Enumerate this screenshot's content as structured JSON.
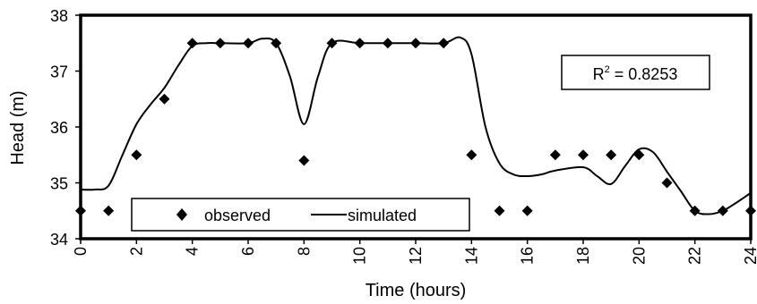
{
  "chart_data": {
    "type": "line",
    "title": "",
    "xlabel": "Time (hours)",
    "ylabel": "Head (m)",
    "xlim": [
      0,
      24
    ],
    "ylim": [
      34,
      38
    ],
    "grid": false,
    "legend_position": "bottom-left",
    "x_ticks": [
      "0",
      "2",
      "4",
      "6",
      "8",
      "10",
      "12",
      "14",
      "16",
      "18",
      "20",
      "22",
      "24"
    ],
    "y_ticks": [
      "34",
      "35",
      "36",
      "37",
      "38"
    ],
    "annotation": {
      "r_label": "R",
      "r_exponent": "2",
      "r_value": " = 0.8253"
    },
    "series": [
      {
        "name": "observed",
        "style": "markers",
        "marker": "diamond",
        "color": "#000000",
        "points": [
          [
            0,
            34.5
          ],
          [
            1,
            34.5
          ],
          [
            2,
            35.5
          ],
          [
            3,
            36.5
          ],
          [
            4,
            37.5
          ],
          [
            5,
            37.5
          ],
          [
            6,
            37.5
          ],
          [
            7,
            37.5
          ],
          [
            8,
            35.4
          ],
          [
            9,
            37.5
          ],
          [
            10,
            37.5
          ],
          [
            11,
            37.5
          ],
          [
            12,
            37.5
          ],
          [
            13,
            37.5
          ],
          [
            14,
            35.5
          ],
          [
            15,
            34.5
          ],
          [
            16,
            34.5
          ],
          [
            17,
            35.5
          ],
          [
            18,
            35.5
          ],
          [
            19,
            35.5
          ],
          [
            20,
            35.5
          ],
          [
            21,
            35.0
          ],
          [
            22,
            34.5
          ],
          [
            23,
            34.5
          ],
          [
            24,
            34.5
          ]
        ]
      },
      {
        "name": "simulated",
        "style": "line",
        "color": "#000000",
        "points": [
          [
            0,
            34.88
          ],
          [
            0.5,
            34.88
          ],
          [
            1,
            34.95
          ],
          [
            1.5,
            35.5
          ],
          [
            2,
            36.05
          ],
          [
            2.5,
            36.4
          ],
          [
            3,
            36.7
          ],
          [
            3.5,
            37.1
          ],
          [
            4,
            37.45
          ],
          [
            4.5,
            37.5
          ],
          [
            5,
            37.5
          ],
          [
            6,
            37.5
          ],
          [
            6.5,
            37.58
          ],
          [
            7,
            37.5
          ],
          [
            7.5,
            36.9
          ],
          [
            8,
            36.05
          ],
          [
            8.5,
            36.9
          ],
          [
            9,
            37.5
          ],
          [
            10,
            37.5
          ],
          [
            11,
            37.5
          ],
          [
            12,
            37.5
          ],
          [
            13,
            37.5
          ],
          [
            13.6,
            37.6
          ],
          [
            14,
            37.3
          ],
          [
            14.5,
            36.0
          ],
          [
            15,
            35.35
          ],
          [
            15.5,
            35.15
          ],
          [
            16,
            35.12
          ],
          [
            16.5,
            35.15
          ],
          [
            17,
            35.22
          ],
          [
            18,
            35.28
          ],
          [
            18.5,
            35.12
          ],
          [
            19,
            34.98
          ],
          [
            19.5,
            35.3
          ],
          [
            20,
            35.6
          ],
          [
            20.5,
            35.55
          ],
          [
            21,
            35.2
          ],
          [
            21.5,
            34.85
          ],
          [
            22,
            34.5
          ],
          [
            22.5,
            34.44
          ],
          [
            23,
            34.5
          ],
          [
            23.5,
            34.65
          ],
          [
            24,
            34.82
          ]
        ]
      }
    ]
  }
}
